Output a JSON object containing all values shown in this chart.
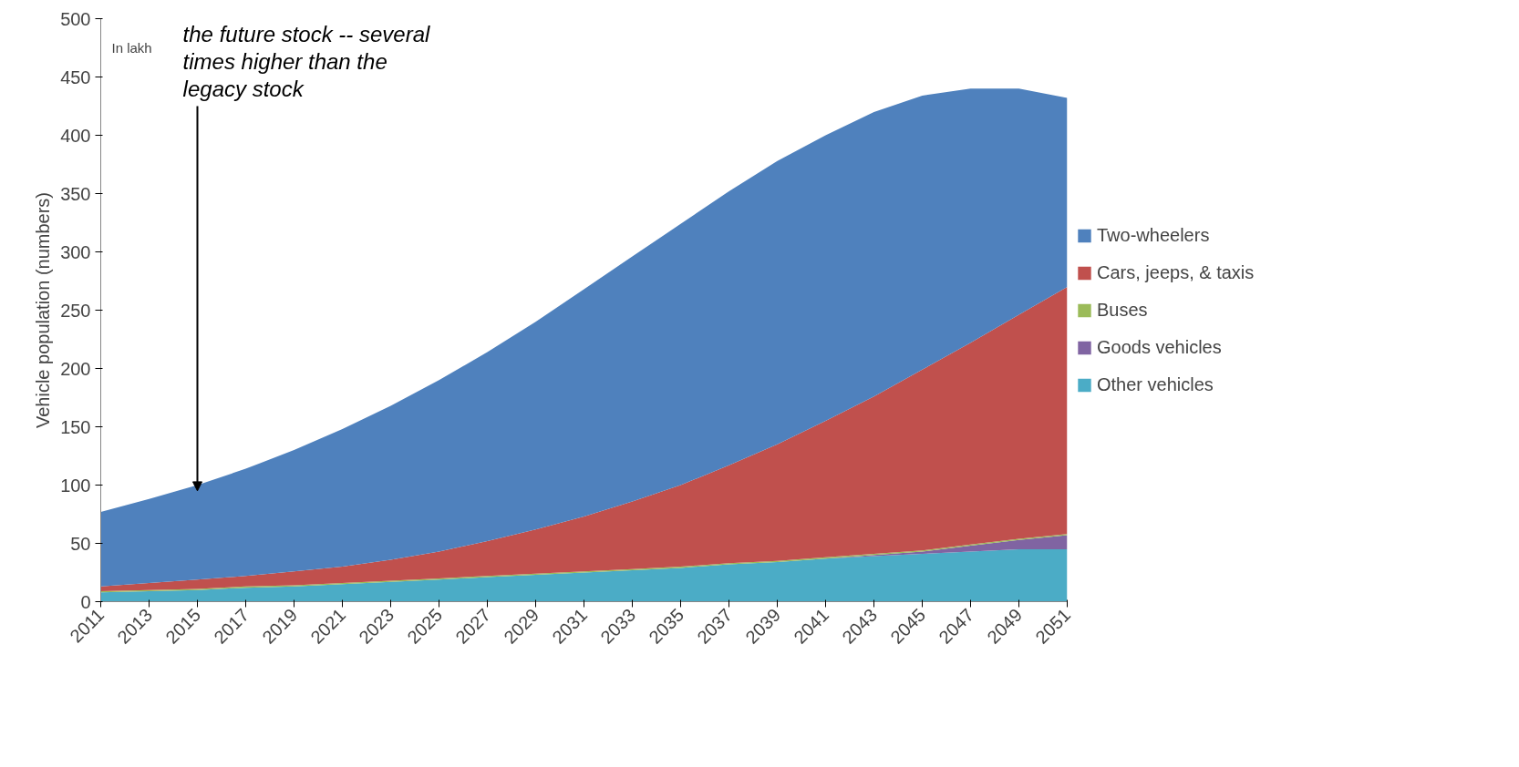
{
  "chart_data": {
    "type": "area",
    "stacked": true,
    "ylabel": "Vehicle population (numbers)",
    "x": [
      2011,
      2013,
      2015,
      2017,
      2019,
      2021,
      2023,
      2025,
      2027,
      2029,
      2031,
      2033,
      2035,
      2037,
      2039,
      2041,
      2043,
      2045,
      2047,
      2049,
      2051
    ],
    "series": [
      {
        "name": "Other vehicles",
        "color": "#4bacc6",
        "values": [
          8,
          9,
          10,
          12,
          13,
          15,
          17,
          19,
          21,
          23,
          25,
          27,
          29,
          32,
          34,
          37,
          39,
          41,
          43,
          45,
          45
        ]
      },
      {
        "name": "Goods vehicles",
        "color": "#8064a2",
        "values": [
          0,
          0,
          0,
          0,
          0,
          0,
          0,
          0,
          0,
          0,
          0,
          0,
          0,
          0,
          0,
          0,
          1,
          2,
          5,
          8,
          12
        ]
      },
      {
        "name": "Buses",
        "color": "#9bbb59",
        "values": [
          1,
          1,
          1,
          1,
          1,
          1,
          1,
          1,
          1,
          1,
          1,
          1,
          1,
          1,
          1,
          1,
          1,
          1,
          1,
          1,
          1
        ]
      },
      {
        "name": "Cars, jeeps, & taxis",
        "color": "#c0504d",
        "values": [
          4,
          6,
          8,
          9,
          12,
          14,
          18,
          23,
          30,
          38,
          47,
          58,
          70,
          84,
          100,
          117,
          135,
          155,
          173,
          192,
          212
        ]
      },
      {
        "name": "Two-wheelers",
        "color": "#4f81bd",
        "values": [
          64,
          72,
          81,
          92,
          104,
          118,
          132,
          147,
          162,
          178,
          195,
          210,
          224,
          235,
          243,
          245,
          244,
          235,
          218,
          194,
          162
        ]
      }
    ],
    "xlim": [
      2011,
      2051
    ],
    "xticks": [
      2011,
      2013,
      2015,
      2017,
      2019,
      2021,
      2023,
      2025,
      2027,
      2029,
      2031,
      2033,
      2035,
      2037,
      2039,
      2041,
      2043,
      2045,
      2047,
      2049,
      2051
    ],
    "ylim": [
      0,
      500
    ],
    "yticks": [
      0,
      50,
      100,
      150,
      200,
      250,
      300,
      350,
      400,
      450,
      500
    ],
    "grid": false,
    "legend": "right",
    "annotations": [
      {
        "text": "the future stock -- several\ntimes higher than the\nlegacy stock",
        "x": 2015,
        "y": 95
      },
      "In lakh"
    ]
  }
}
